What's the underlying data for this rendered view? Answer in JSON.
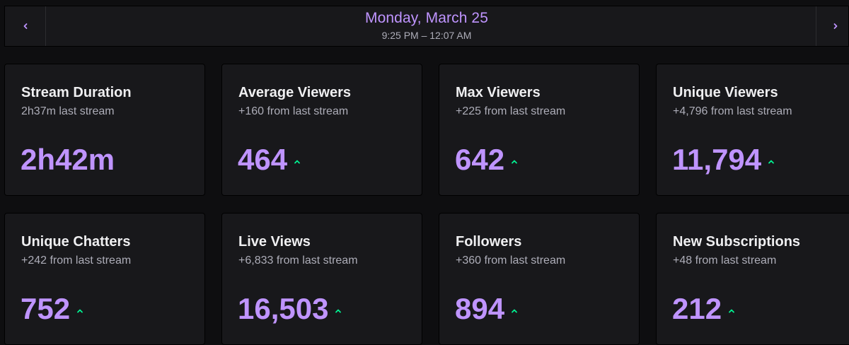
{
  "header": {
    "date": "Monday, March 25",
    "time_range": "9:25 PM – 12:07 AM",
    "prev_icon": "chevron-left-icon",
    "next_icon": "chevron-right-icon"
  },
  "colors": {
    "accent": "#bf94ff",
    "trend_up": "#00f593",
    "background": "#0e0e10",
    "card": "#18181b"
  },
  "cards": [
    {
      "title": "Stream Duration",
      "subtitle": "2h37m last stream",
      "value": "2h42m",
      "trend": "none"
    },
    {
      "title": "Average Viewers",
      "subtitle": "+160 from last stream",
      "value": "464",
      "trend": "up"
    },
    {
      "title": "Max Viewers",
      "subtitle": "+225 from last stream",
      "value": "642",
      "trend": "up"
    },
    {
      "title": "Unique Viewers",
      "subtitle": "+4,796 from last stream",
      "value": "11,794",
      "trend": "up"
    },
    {
      "title": "Unique Chatters",
      "subtitle": "+242 from last stream",
      "value": "752",
      "trend": "up"
    },
    {
      "title": "Live Views",
      "subtitle": "+6,833 from last stream",
      "value": "16,503",
      "trend": "up"
    },
    {
      "title": "Followers",
      "subtitle": "+360 from last stream",
      "value": "894",
      "trend": "up"
    },
    {
      "title": "New Subscriptions",
      "subtitle": "+48 from last stream",
      "value": "212",
      "trend": "up"
    }
  ]
}
